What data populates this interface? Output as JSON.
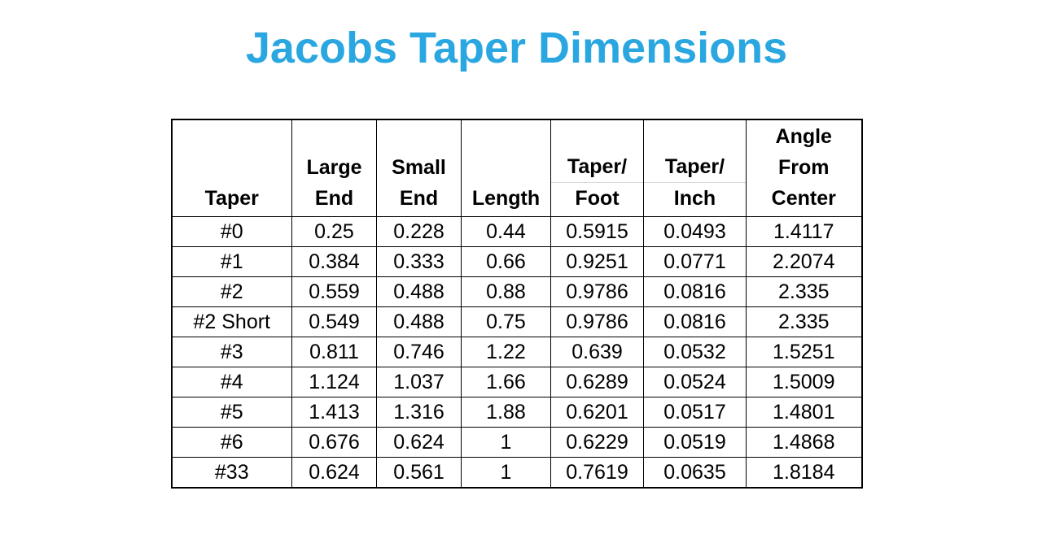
{
  "chart_data": {
    "type": "table",
    "title": "Jacobs Taper Dimensions",
    "title_color": "#2aa7e0",
    "grid_color": "#000000",
    "header_sub_divider_color": "#d9d9d9",
    "columns": [
      {
        "id": "taper",
        "label": "Taper",
        "lines": [
          "Taper"
        ],
        "sub_divider": false
      },
      {
        "id": "large-end",
        "label": "Large End",
        "lines": [
          "Large",
          "End"
        ],
        "sub_divider": false
      },
      {
        "id": "small-end",
        "label": "Small End",
        "lines": [
          "Small",
          "End"
        ],
        "sub_divider": false
      },
      {
        "id": "length",
        "label": "Length",
        "lines": [
          "Length"
        ],
        "sub_divider": false
      },
      {
        "id": "taper-per-foot",
        "label": "Taper/Foot",
        "lines": [
          "Taper/",
          "Foot"
        ],
        "sub_divider": true
      },
      {
        "id": "taper-per-inch",
        "label": "Taper/Inch",
        "lines": [
          "Taper/",
          "Inch"
        ],
        "sub_divider": true
      },
      {
        "id": "angle-from-center",
        "label": "Angle From Center",
        "lines": [
          "Angle",
          "From",
          "Center"
        ],
        "sub_divider": false
      }
    ],
    "rows": [
      [
        "#0",
        "0.25",
        "0.228",
        "0.44",
        "0.5915",
        "0.0493",
        "1.4117"
      ],
      [
        "#1",
        "0.384",
        "0.333",
        "0.66",
        "0.9251",
        "0.0771",
        "2.2074"
      ],
      [
        "#2",
        "0.559",
        "0.488",
        "0.88",
        "0.9786",
        "0.0816",
        "2.335"
      ],
      [
        "#2 Short",
        "0.549",
        "0.488",
        "0.75",
        "0.9786",
        "0.0816",
        "2.335"
      ],
      [
        "#3",
        "0.811",
        "0.746",
        "1.22",
        "0.639",
        "0.0532",
        "1.5251"
      ],
      [
        "#4",
        "1.124",
        "1.037",
        "1.66",
        "0.6289",
        "0.0524",
        "1.5009"
      ],
      [
        "#5",
        "1.413",
        "1.316",
        "1.88",
        "0.6201",
        "0.0517",
        "1.4801"
      ],
      [
        "#6",
        "0.676",
        "0.624",
        "1",
        "0.6229",
        "0.0519",
        "1.4868"
      ],
      [
        "#33",
        "0.624",
        "0.561",
        "1",
        "0.7619",
        "0.0635",
        "1.8184"
      ]
    ]
  }
}
